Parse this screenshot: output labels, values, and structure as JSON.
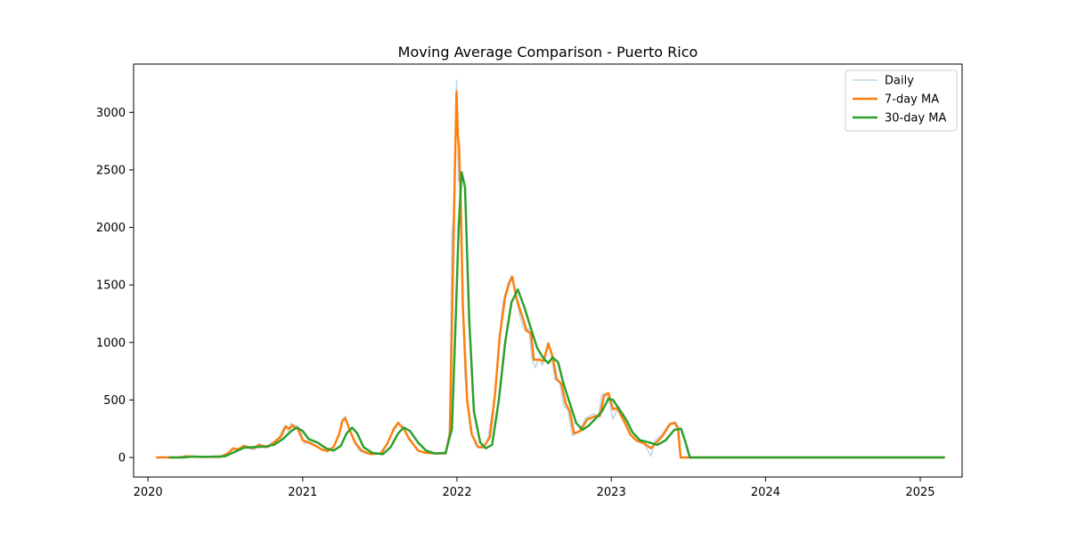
{
  "chart_data": {
    "type": "line",
    "title": "Moving Average Comparison - Puerto Rico",
    "xlabel": "",
    "ylabel": "",
    "xlim": [
      "2019-11-28",
      "2025-04-10"
    ],
    "ylim": [
      -170,
      3420
    ],
    "x_ticks": [
      {
        "date": "2020-01-01",
        "label": "2020"
      },
      {
        "date": "2021-01-01",
        "label": "2021"
      },
      {
        "date": "2022-01-01",
        "label": "2022"
      },
      {
        "date": "2023-01-01",
        "label": "2023"
      },
      {
        "date": "2024-01-01",
        "label": "2024"
      },
      {
        "date": "2025-01-01",
        "label": "2025"
      }
    ],
    "y_ticks": [
      0,
      500,
      1000,
      1500,
      2000,
      2500,
      3000
    ],
    "grid": false,
    "legend_position": "top-right",
    "series": [
      {
        "name": "Daily",
        "color": "#1f77b4",
        "opacity": 0.3,
        "linewidth": 1.5,
        "points": [
          [
            "2020-01-22",
            0
          ],
          [
            "2020-03-15",
            0
          ],
          [
            "2020-04-01",
            10
          ],
          [
            "2020-05-01",
            5
          ],
          [
            "2020-06-20",
            5
          ],
          [
            "2020-07-10",
            40
          ],
          [
            "2020-07-20",
            80
          ],
          [
            "2020-08-01",
            60
          ],
          [
            "2020-08-15",
            110
          ],
          [
            "2020-08-25",
            80
          ],
          [
            "2020-09-10",
            70
          ],
          [
            "2020-09-20",
            120
          ],
          [
            "2020-10-05",
            80
          ],
          [
            "2020-10-20",
            130
          ],
          [
            "2020-11-05",
            170
          ],
          [
            "2020-11-20",
            280
          ],
          [
            "2020-11-28",
            230
          ],
          [
            "2020-12-05",
            300
          ],
          [
            "2020-12-12",
            240
          ],
          [
            "2020-12-20",
            280
          ],
          [
            "2020-12-30",
            200
          ],
          [
            "2021-01-05",
            120
          ],
          [
            "2021-01-15",
            140
          ],
          [
            "2021-02-01",
            110
          ],
          [
            "2021-02-15",
            70
          ],
          [
            "2021-03-01",
            50
          ],
          [
            "2021-03-15",
            90
          ],
          [
            "2021-03-28",
            200
          ],
          [
            "2021-04-05",
            330
          ],
          [
            "2021-04-12",
            360
          ],
          [
            "2021-04-20",
            250
          ],
          [
            "2021-05-01",
            150
          ],
          [
            "2021-05-15",
            60
          ],
          [
            "2021-06-01",
            30
          ],
          [
            "2021-07-01",
            30
          ],
          [
            "2021-07-20",
            120
          ],
          [
            "2021-08-05",
            260
          ],
          [
            "2021-08-15",
            310
          ],
          [
            "2021-08-25",
            260
          ],
          [
            "2021-09-10",
            170
          ],
          [
            "2021-10-01",
            60
          ],
          [
            "2021-10-20",
            40
          ],
          [
            "2021-11-10",
            30
          ],
          [
            "2021-11-25",
            40
          ],
          [
            "2021-12-05",
            30
          ],
          [
            "2021-12-15",
            250
          ],
          [
            "2021-12-20",
            1950
          ],
          [
            "2021-12-24",
            2100
          ],
          [
            "2021-12-28",
            2650
          ],
          [
            "2021-12-31",
            3280
          ],
          [
            "2022-01-02",
            3000
          ],
          [
            "2022-01-04",
            2400
          ],
          [
            "2022-01-06",
            2700
          ],
          [
            "2022-01-08",
            2300
          ],
          [
            "2022-01-12",
            1700
          ],
          [
            "2022-01-20",
            700
          ],
          [
            "2022-02-01",
            250
          ],
          [
            "2022-02-15",
            100
          ],
          [
            "2022-03-01",
            80
          ],
          [
            "2022-03-15",
            150
          ],
          [
            "2022-04-01",
            550
          ],
          [
            "2022-04-10",
            1000
          ],
          [
            "2022-04-20",
            1350
          ],
          [
            "2022-05-01",
            1500
          ],
          [
            "2022-05-10",
            1580
          ],
          [
            "2022-05-20",
            1400
          ],
          [
            "2022-06-01",
            1200
          ],
          [
            "2022-06-10",
            1100
          ],
          [
            "2022-06-20",
            1120
          ],
          [
            "2022-06-28",
            850
          ],
          [
            "2022-07-05",
            780
          ],
          [
            "2022-07-15",
            870
          ],
          [
            "2022-07-22",
            800
          ],
          [
            "2022-08-05",
            1000
          ],
          [
            "2022-08-12",
            900
          ],
          [
            "2022-08-20",
            680
          ],
          [
            "2022-09-01",
            650
          ],
          [
            "2022-09-10",
            450
          ],
          [
            "2022-09-20",
            420
          ],
          [
            "2022-10-01",
            190
          ],
          [
            "2022-10-15",
            220
          ],
          [
            "2022-11-01",
            340
          ],
          [
            "2022-11-20",
            380
          ],
          [
            "2022-12-01",
            350
          ],
          [
            "2022-12-10",
            550
          ],
          [
            "2022-12-20",
            540
          ],
          [
            "2022-12-28",
            480
          ],
          [
            "2023-01-05",
            330
          ],
          [
            "2023-01-15",
            420
          ],
          [
            "2023-02-01",
            320
          ],
          [
            "2023-02-15",
            200
          ],
          [
            "2023-03-01",
            140
          ],
          [
            "2023-03-20",
            120
          ],
          [
            "2023-04-05",
            10
          ],
          [
            "2023-04-15",
            150
          ],
          [
            "2023-05-01",
            200
          ],
          [
            "2023-05-20",
            300
          ],
          [
            "2023-06-01",
            310
          ],
          [
            "2023-06-10",
            260
          ],
          [
            "2023-06-14",
            0
          ],
          [
            "2025-02-26",
            0
          ]
        ]
      },
      {
        "name": "7-day MA",
        "color": "#ff7f0e",
        "opacity": 1,
        "linewidth": 2.5,
        "points": [
          [
            "2020-01-22",
            0
          ],
          [
            "2020-03-15",
            0
          ],
          [
            "2020-04-01",
            10
          ],
          [
            "2020-05-01",
            5
          ],
          [
            "2020-06-20",
            5
          ],
          [
            "2020-07-10",
            40
          ],
          [
            "2020-07-20",
            80
          ],
          [
            "2020-08-01",
            70
          ],
          [
            "2020-08-15",
            100
          ],
          [
            "2020-09-05",
            80
          ],
          [
            "2020-09-20",
            110
          ],
          [
            "2020-10-10",
            90
          ],
          [
            "2020-10-25",
            130
          ],
          [
            "2020-11-10",
            180
          ],
          [
            "2020-11-22",
            270
          ],
          [
            "2020-12-01",
            250
          ],
          [
            "2020-12-08",
            280
          ],
          [
            "2020-12-20",
            250
          ],
          [
            "2021-01-01",
            150
          ],
          [
            "2021-01-15",
            130
          ],
          [
            "2021-02-01",
            100
          ],
          [
            "2021-02-15",
            70
          ],
          [
            "2021-03-01",
            55
          ],
          [
            "2021-03-15",
            90
          ],
          [
            "2021-03-28",
            200
          ],
          [
            "2021-04-05",
            320
          ],
          [
            "2021-04-12",
            340
          ],
          [
            "2021-04-22",
            240
          ],
          [
            "2021-05-05",
            130
          ],
          [
            "2021-05-20",
            60
          ],
          [
            "2021-06-10",
            30
          ],
          [
            "2021-07-05",
            35
          ],
          [
            "2021-07-20",
            120
          ],
          [
            "2021-08-05",
            250
          ],
          [
            "2021-08-15",
            300
          ],
          [
            "2021-08-28",
            250
          ],
          [
            "2021-09-10",
            160
          ],
          [
            "2021-10-01",
            60
          ],
          [
            "2021-10-20",
            40
          ],
          [
            "2021-11-15",
            35
          ],
          [
            "2021-12-05",
            35
          ],
          [
            "2021-12-15",
            200
          ],
          [
            "2021-12-22",
            1500
          ],
          [
            "2021-12-27",
            2500
          ],
          [
            "2021-12-31",
            3180
          ],
          [
            "2022-01-03",
            2800
          ],
          [
            "2022-01-06",
            2700
          ],
          [
            "2022-01-10",
            2200
          ],
          [
            "2022-01-15",
            1300
          ],
          [
            "2022-01-25",
            500
          ],
          [
            "2022-02-05",
            200
          ],
          [
            "2022-02-20",
            90
          ],
          [
            "2022-03-05",
            90
          ],
          [
            "2022-03-20",
            180
          ],
          [
            "2022-04-01",
            550
          ],
          [
            "2022-04-12",
            1050
          ],
          [
            "2022-04-25",
            1400
          ],
          [
            "2022-05-05",
            1520
          ],
          [
            "2022-05-12",
            1570
          ],
          [
            "2022-05-22",
            1380
          ],
          [
            "2022-06-05",
            1220
          ],
          [
            "2022-06-15",
            1100
          ],
          [
            "2022-06-25",
            1080
          ],
          [
            "2022-07-02",
            850
          ],
          [
            "2022-07-15",
            850
          ],
          [
            "2022-07-25",
            840
          ],
          [
            "2022-08-05",
            990
          ],
          [
            "2022-08-15",
            880
          ],
          [
            "2022-08-25",
            680
          ],
          [
            "2022-09-05",
            640
          ],
          [
            "2022-09-15",
            470
          ],
          [
            "2022-09-25",
            400
          ],
          [
            "2022-10-05",
            210
          ],
          [
            "2022-10-20",
            230
          ],
          [
            "2022-11-05",
            330
          ],
          [
            "2022-11-25",
            360
          ],
          [
            "2022-12-05",
            360
          ],
          [
            "2022-12-15",
            540
          ],
          [
            "2022-12-25",
            560
          ],
          [
            "2023-01-05",
            420
          ],
          [
            "2023-01-15",
            430
          ],
          [
            "2023-02-01",
            310
          ],
          [
            "2023-02-15",
            200
          ],
          [
            "2023-03-01",
            150
          ],
          [
            "2023-03-20",
            120
          ],
          [
            "2023-04-05",
            80
          ],
          [
            "2023-04-15",
            120
          ],
          [
            "2023-05-01",
            180
          ],
          [
            "2023-05-20",
            290
          ],
          [
            "2023-06-01",
            300
          ],
          [
            "2023-06-08",
            250
          ],
          [
            "2023-06-14",
            0
          ],
          [
            "2025-02-26",
            0
          ]
        ]
      },
      {
        "name": "30-day MA",
        "color": "#2ca02c",
        "opacity": 1,
        "linewidth": 2.5,
        "points": [
          [
            "2020-02-21",
            0
          ],
          [
            "2020-03-25",
            0
          ],
          [
            "2020-04-15",
            8
          ],
          [
            "2020-05-15",
            5
          ],
          [
            "2020-07-01",
            10
          ],
          [
            "2020-07-25",
            50
          ],
          [
            "2020-08-15",
            85
          ],
          [
            "2020-09-10",
            90
          ],
          [
            "2020-10-05",
            95
          ],
          [
            "2020-10-25",
            110
          ],
          [
            "2020-11-15",
            160
          ],
          [
            "2020-12-05",
            230
          ],
          [
            "2020-12-18",
            260
          ],
          [
            "2021-01-01",
            230
          ],
          [
            "2021-01-15",
            160
          ],
          [
            "2021-02-05",
            130
          ],
          [
            "2021-02-25",
            80
          ],
          [
            "2021-03-15",
            60
          ],
          [
            "2021-04-01",
            100
          ],
          [
            "2021-04-15",
            210
          ],
          [
            "2021-04-28",
            260
          ],
          [
            "2021-05-10",
            210
          ],
          [
            "2021-05-25",
            90
          ],
          [
            "2021-06-15",
            40
          ],
          [
            "2021-07-10",
            30
          ],
          [
            "2021-07-28",
            90
          ],
          [
            "2021-08-15",
            210
          ],
          [
            "2021-08-28",
            260
          ],
          [
            "2021-09-12",
            230
          ],
          [
            "2021-10-01",
            130
          ],
          [
            "2021-10-20",
            60
          ],
          [
            "2021-11-10",
            35
          ],
          [
            "2021-12-05",
            40
          ],
          [
            "2021-12-20",
            250
          ],
          [
            "2021-12-28",
            1100
          ],
          [
            "2022-01-05",
            2000
          ],
          [
            "2022-01-12",
            2480
          ],
          [
            "2022-01-20",
            2350
          ],
          [
            "2022-01-30",
            1200
          ],
          [
            "2022-02-10",
            400
          ],
          [
            "2022-02-25",
            130
          ],
          [
            "2022-03-10",
            80
          ],
          [
            "2022-03-25",
            110
          ],
          [
            "2022-04-10",
            500
          ],
          [
            "2022-04-25",
            1000
          ],
          [
            "2022-05-10",
            1350
          ],
          [
            "2022-05-25",
            1460
          ],
          [
            "2022-06-10",
            1300
          ],
          [
            "2022-06-25",
            1120
          ],
          [
            "2022-07-10",
            950
          ],
          [
            "2022-07-25",
            860
          ],
          [
            "2022-08-05",
            820
          ],
          [
            "2022-08-15",
            870
          ],
          [
            "2022-08-28",
            830
          ],
          [
            "2022-09-10",
            640
          ],
          [
            "2022-09-25",
            470
          ],
          [
            "2022-10-10",
            300
          ],
          [
            "2022-10-25",
            240
          ],
          [
            "2022-11-10",
            280
          ],
          [
            "2022-11-25",
            340
          ],
          [
            "2022-12-10",
            400
          ],
          [
            "2022-12-25",
            510
          ],
          [
            "2023-01-05",
            500
          ],
          [
            "2023-01-20",
            420
          ],
          [
            "2023-02-05",
            330
          ],
          [
            "2023-02-20",
            220
          ],
          [
            "2023-03-10",
            150
          ],
          [
            "2023-04-01",
            130
          ],
          [
            "2023-04-20",
            110
          ],
          [
            "2023-05-10",
            150
          ],
          [
            "2023-05-30",
            240
          ],
          [
            "2023-06-15",
            250
          ],
          [
            "2023-06-25",
            140
          ],
          [
            "2023-07-06",
            0
          ],
          [
            "2025-02-26",
            0
          ]
        ]
      }
    ]
  }
}
